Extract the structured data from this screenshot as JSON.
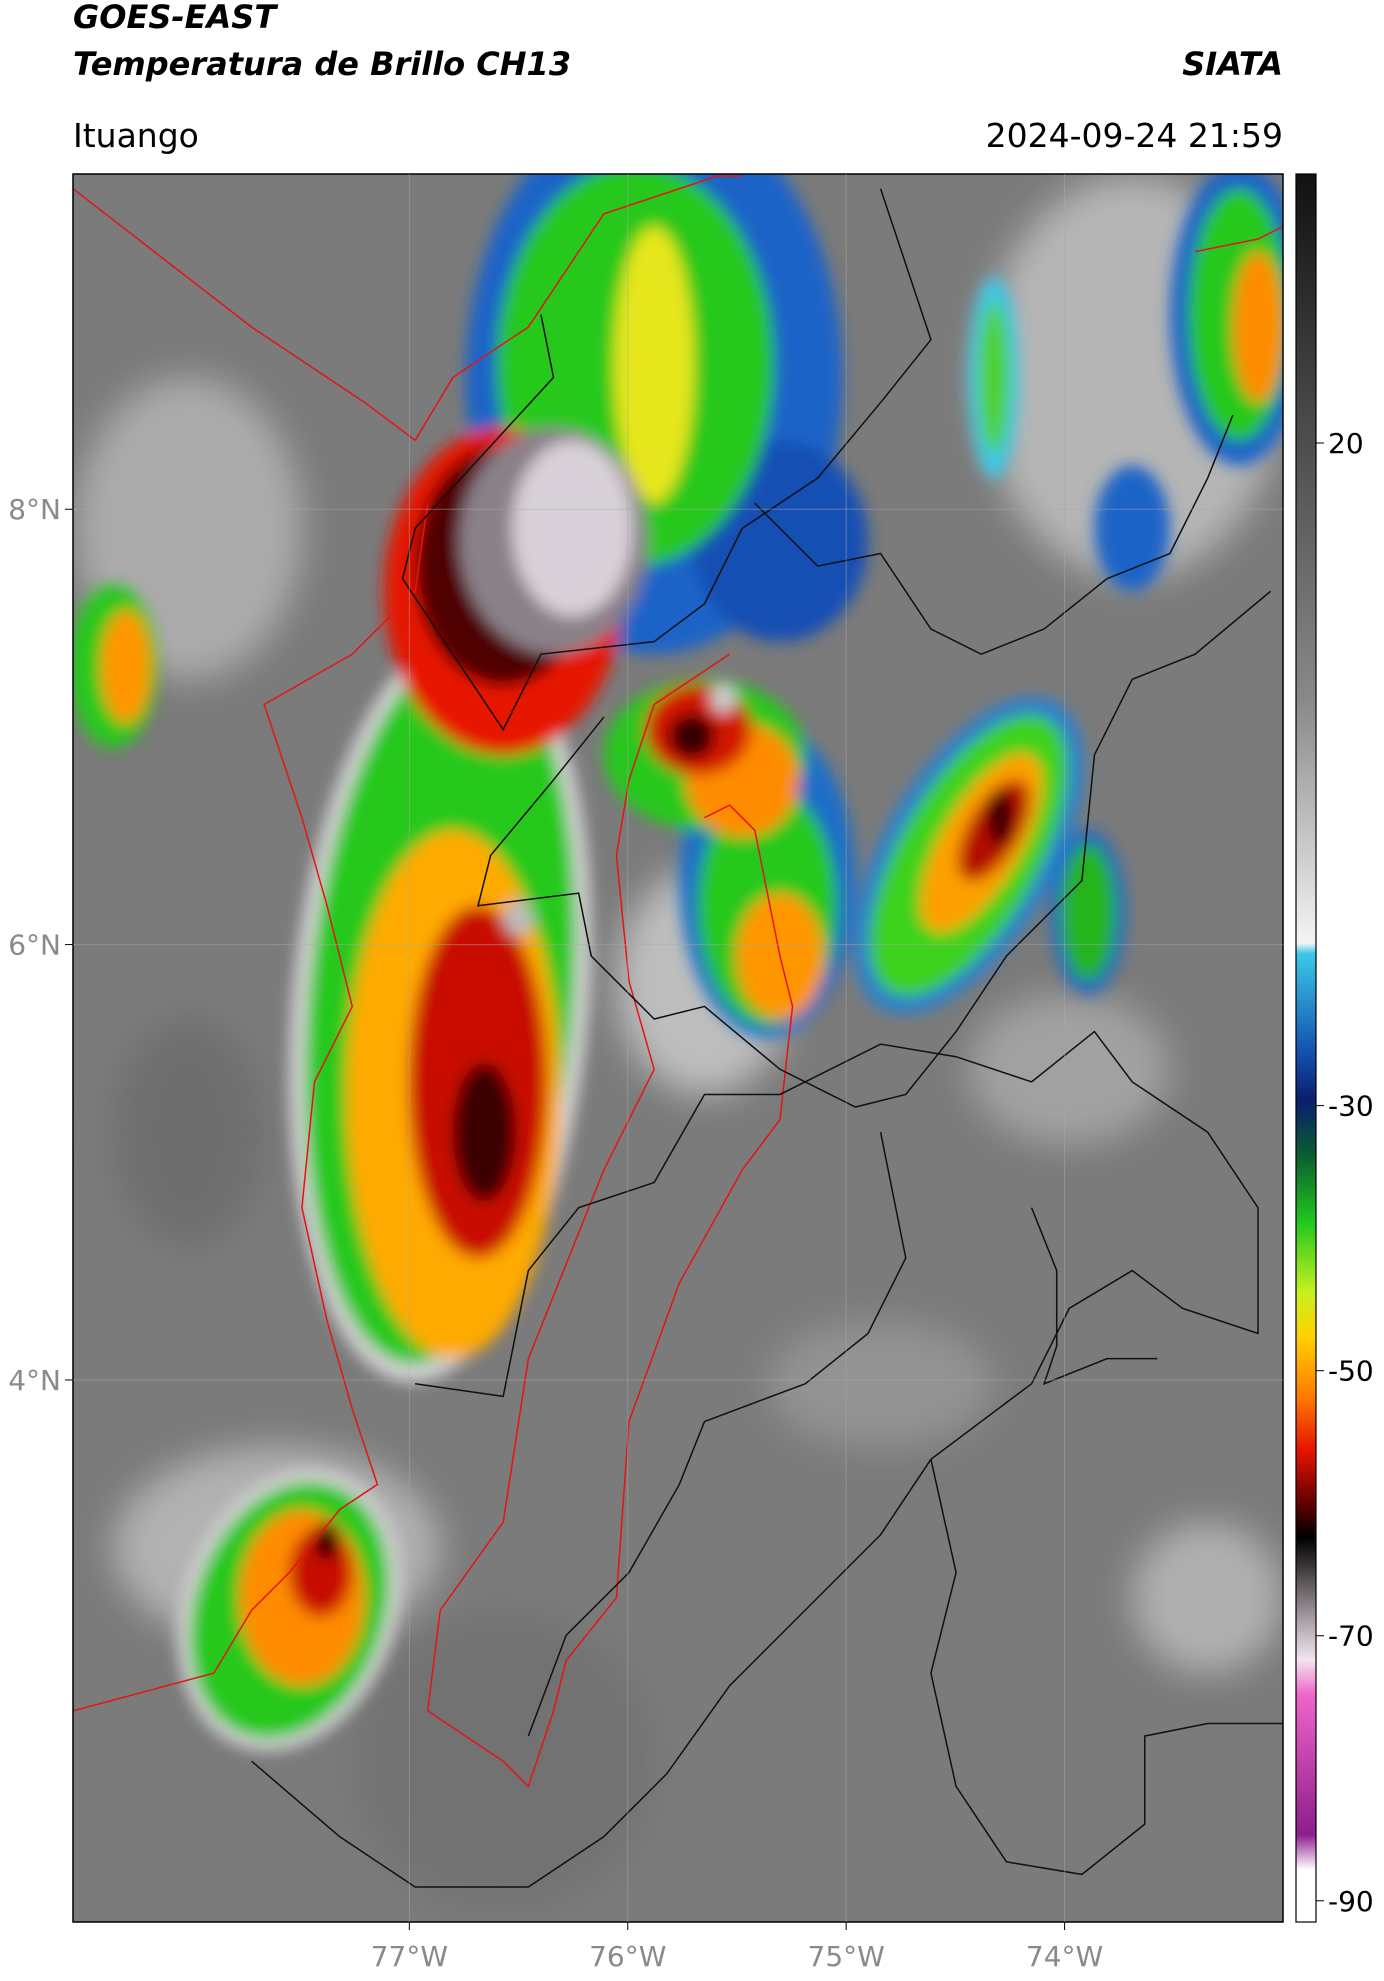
{
  "header": {
    "title": "GOES-EAST",
    "subtitle": "Temperatura de Brillo CH13",
    "source": "SIATA",
    "location": "Ituango",
    "datetime": "2024-09-24 21:59"
  },
  "map": {
    "xlim": [
      -78.54,
      -73.0
    ],
    "ylim": [
      1.51,
      9.54
    ],
    "xticks": [
      {
        "value": -77,
        "label": "77°W"
      },
      {
        "value": -76,
        "label": "76°W"
      },
      {
        "value": -75,
        "label": "75°W"
      },
      {
        "value": -74,
        "label": "74°W"
      }
    ],
    "yticks": [
      {
        "value": 4,
        "label": "4°N"
      },
      {
        "value": 6,
        "label": "6°N"
      },
      {
        "value": 8,
        "label": "8°N"
      }
    ],
    "grid": true
  },
  "colorbar": {
    "lim": [
      -91.6,
      40.3
    ],
    "ticks": [
      20,
      -30,
      -50,
      -70,
      -90
    ]
  }
}
